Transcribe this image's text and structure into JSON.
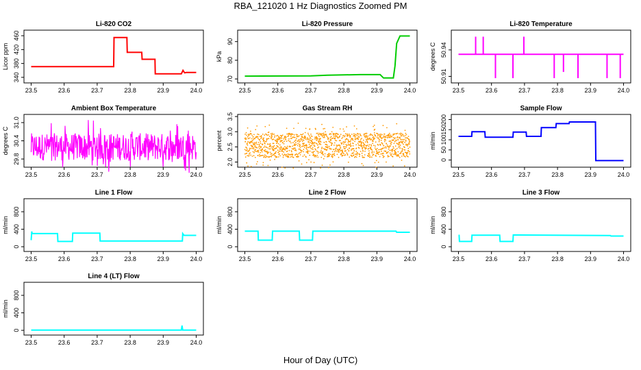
{
  "figure": {
    "title": "RBA_121020  1 Hz Diagnostics Zoomed PM",
    "xlabel": "Hour of Day (UTC)"
  },
  "chart_data": [
    {
      "type": "line",
      "title": "Li-820 CO2",
      "ylabel": "Licor ppm",
      "color": "#ff0000",
      "xlim": [
        23.5,
        24.0
      ],
      "ylim": [
        330,
        470
      ],
      "x_ticks": [
        "23.5",
        "23.6",
        "23.7",
        "23.8",
        "23.9",
        "24.0"
      ],
      "y_ticks": [
        "340",
        "380",
        "420",
        "460"
      ],
      "series": [
        {
          "x": [
            23.5,
            23.75,
            23.751,
            23.79,
            23.791,
            23.835,
            23.836,
            23.875,
            23.876,
            23.955,
            23.96,
            23.965,
            23.97,
            24.0
          ],
          "y": [
            371,
            371,
            455,
            455,
            412,
            412,
            392,
            392,
            350,
            350,
            360,
            353,
            354,
            354
          ]
        }
      ]
    },
    {
      "type": "line",
      "title": "Li-820 Pressure",
      "ylabel": "kPa",
      "color": "#00cc00",
      "xlim": [
        23.5,
        24.0
      ],
      "ylim": [
        69,
        95
      ],
      "x_ticks": [
        "23.5",
        "23.6",
        "23.7",
        "23.8",
        "23.9",
        "24.0"
      ],
      "y_ticks": [
        "70",
        "80",
        "90"
      ],
      "series": [
        {
          "x": [
            23.5,
            23.7,
            23.75,
            23.85,
            23.91,
            23.92,
            23.95,
            23.955,
            23.96,
            23.97,
            24.0
          ],
          "y": [
            71.5,
            71.6,
            72,
            72.3,
            72.3,
            70.5,
            70.5,
            77,
            89,
            93,
            93
          ]
        }
      ]
    },
    {
      "type": "line",
      "title": "Li-820 Temperature",
      "ylabel": "degrees C",
      "color": "#ff00ff",
      "xlim": [
        23.5,
        24.0
      ],
      "ylim": [
        50.905,
        50.96
      ],
      "x_ticks": [
        "23.5",
        "23.6",
        "23.7",
        "23.8",
        "23.9",
        "24.0"
      ],
      "y_ticks": [
        "50.91",
        "50.94"
      ],
      "series": [
        {
          "x": [
            23.5,
            24.0
          ],
          "y": [
            50.935,
            50.935
          ]
        }
      ],
      "spikes": [
        {
          "x": 23.552,
          "y": 50.955
        },
        {
          "x": 23.575,
          "y": 50.955
        },
        {
          "x": 23.698,
          "y": 50.955
        },
        {
          "x": 23.612,
          "y": 50.908
        },
        {
          "x": 23.665,
          "y": 50.908
        },
        {
          "x": 23.79,
          "y": 50.908
        },
        {
          "x": 23.818,
          "y": 50.915
        },
        {
          "x": 23.862,
          "y": 50.908
        },
        {
          "x": 23.95,
          "y": 50.908
        },
        {
          "x": 23.99,
          "y": 50.908
        }
      ]
    },
    {
      "type": "line",
      "title": "Ambient Box Temperature",
      "ylabel": "degrees C",
      "color": "#ff00ff",
      "xlim": [
        23.5,
        24.0
      ],
      "ylim": [
        29.6,
        31.2
      ],
      "x_ticks": [
        "23.5",
        "23.6",
        "23.7",
        "23.8",
        "23.9",
        "24.0"
      ],
      "y_ticks": [
        "29.8",
        "30.4",
        "31.0"
      ],
      "noise": {
        "base": 30.2,
        "amp_low": 0.45,
        "amp_high": 0.9,
        "n": 420
      }
    },
    {
      "type": "scatter",
      "title": "Gas Stream RH",
      "ylabel": "percent",
      "color": "#ff9900",
      "xlim": [
        23.5,
        24.0
      ],
      "ylim": [
        1.9,
        3.5
      ],
      "x_ticks": [
        "23.5",
        "23.6",
        "23.7",
        "23.8",
        "23.9",
        "24.0"
      ],
      "y_ticks": [
        "2.0",
        "2.5",
        "3.0",
        "3.5"
      ],
      "noise": {
        "base": 2.55,
        "amp_low": 0.4,
        "amp_high": 0.75,
        "n": 1400
      }
    },
    {
      "type": "line",
      "title": "Sample Flow",
      "ylabel": "ml/min",
      "color": "#0000ff",
      "xlim": [
        23.5,
        24.0
      ],
      "ylim": [
        -25,
        215
      ],
      "x_ticks": [
        "23.5",
        "23.6",
        "23.7",
        "23.8",
        "23.9",
        "24.0"
      ],
      "y_ticks": [
        "0",
        "50",
        "100",
        "150",
        "200"
      ],
      "series": [
        {
          "x": [
            23.5,
            23.54,
            23.541,
            23.58,
            23.581,
            23.665,
            23.666,
            23.705,
            23.706,
            23.75,
            23.751,
            23.795,
            23.796,
            23.835,
            23.836,
            23.915,
            23.916,
            24.0
          ],
          "y": [
            117,
            117,
            140,
            140,
            113,
            113,
            138,
            138,
            117,
            117,
            160,
            160,
            180,
            180,
            188,
            188,
            -3,
            -3
          ]
        }
      ]
    },
    {
      "type": "line",
      "title": "Line 1 Flow",
      "ylabel": "ml/min",
      "color": "#00ffff",
      "xlim": [
        23.5,
        24.0
      ],
      "ylim": [
        -60,
        1050
      ],
      "x_ticks": [
        "23.5",
        "23.6",
        "23.7",
        "23.8",
        "23.9",
        "24.0"
      ],
      "y_ticks": [
        "0",
        "400",
        "800"
      ],
      "series": [
        {
          "x": [
            23.5,
            23.502,
            23.503,
            23.58,
            23.581,
            23.625,
            23.626,
            23.708,
            23.709,
            23.958,
            23.959,
            23.963,
            24.0
          ],
          "y": [
            150,
            350,
            300,
            300,
            120,
            120,
            310,
            310,
            130,
            130,
            300,
            260,
            260
          ]
        }
      ]
    },
    {
      "type": "line",
      "title": "Line 2 Flow",
      "ylabel": "ml/min",
      "color": "#00ffff",
      "xlim": [
        23.5,
        24.0
      ],
      "ylim": [
        -60,
        1050
      ],
      "x_ticks": [
        "23.5",
        "23.6",
        "23.7",
        "23.8",
        "23.9",
        "24.0"
      ],
      "y_ticks": [
        "0",
        "400",
        "800"
      ],
      "series": [
        {
          "x": [
            23.5,
            23.54,
            23.541,
            23.583,
            23.584,
            23.665,
            23.666,
            23.705,
            23.706,
            23.958,
            23.96,
            24.0
          ],
          "y": [
            355,
            355,
            150,
            150,
            355,
            355,
            150,
            150,
            355,
            355,
            330,
            330
          ]
        }
      ]
    },
    {
      "type": "line",
      "title": "Line 3 Flow",
      "ylabel": "ml/min",
      "color": "#00ffff",
      "xlim": [
        23.5,
        24.0
      ],
      "ylim": [
        -60,
        1050
      ],
      "x_ticks": [
        "23.5",
        "23.6",
        "23.7",
        "23.8",
        "23.9",
        "24.0"
      ],
      "y_ticks": [
        "0",
        "400",
        "800"
      ],
      "series": [
        {
          "x": [
            23.5,
            23.502,
            23.503,
            23.54,
            23.541,
            23.625,
            23.626,
            23.665,
            23.666,
            23.96,
            23.962,
            24.0
          ],
          "y": [
            260,
            260,
            120,
            120,
            265,
            265,
            120,
            120,
            270,
            255,
            245,
            245
          ]
        }
      ]
    },
    {
      "type": "line",
      "title": "Line 4 (LT) Flow",
      "ylabel": "ml/min",
      "color": "#00ffff",
      "xlim": [
        23.5,
        24.0
      ],
      "ylim": [
        -60,
        1050
      ],
      "x_ticks": [
        "23.5",
        "23.6",
        "23.7",
        "23.8",
        "23.9",
        "24.0"
      ],
      "y_ticks": [
        "0",
        "400",
        "800"
      ],
      "series": [
        {
          "x": [
            23.5,
            23.955,
            23.957,
            23.959,
            24.0
          ],
          "y": [
            5,
            5,
            110,
            5,
            5
          ]
        }
      ]
    }
  ]
}
